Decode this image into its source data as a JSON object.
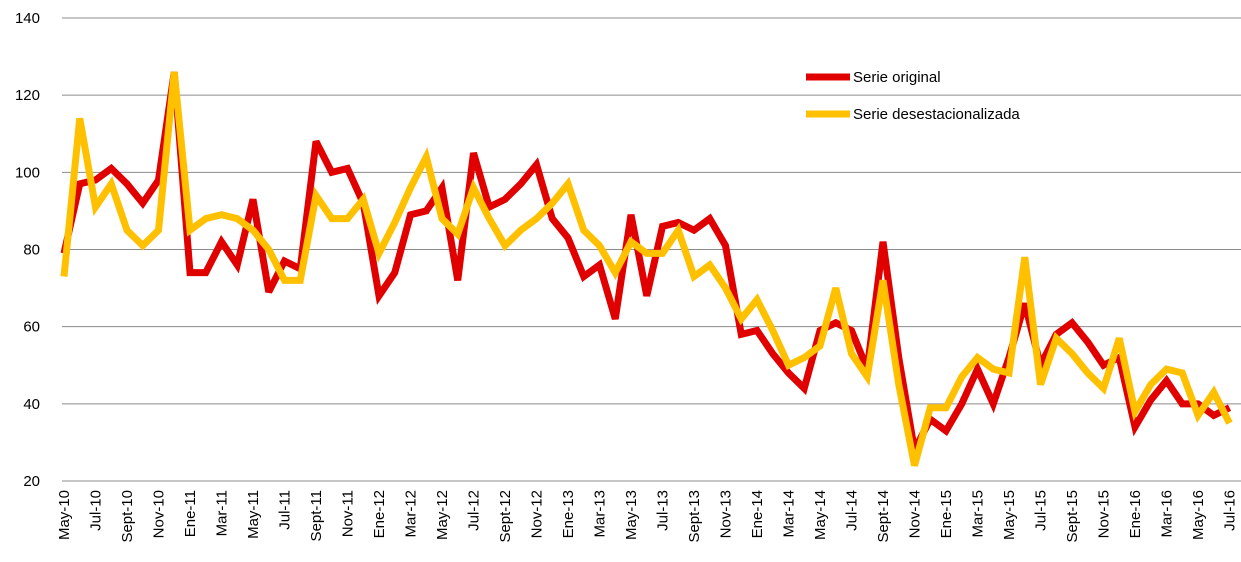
{
  "chart_data": {
    "type": "line",
    "categories": [
      "May-10",
      null,
      "Jul-10",
      null,
      "Sept-10",
      null,
      "Nov-10",
      null,
      "Ene-11",
      null,
      "Mar-11",
      null,
      "May-11",
      null,
      "Jul-11",
      null,
      "Sept-11",
      null,
      "Nov-11",
      null,
      "Ene-12",
      null,
      "Mar-12",
      null,
      "May-12",
      null,
      "Jul-12",
      null,
      "Sept-12",
      null,
      "Nov-12",
      null,
      "Ene-13",
      null,
      "Mar-13",
      null,
      "May-13",
      null,
      "Jul-13",
      null,
      "Sept-13",
      null,
      "Nov-13",
      null,
      "Ene-14",
      null,
      "Mar-14",
      null,
      "May-14",
      null,
      "Jul-14",
      null,
      "Sept-14",
      null,
      "Nov-14",
      null,
      "Ene-15",
      null,
      "Mar-15",
      null,
      "May-15",
      null,
      "Jul-15",
      null,
      "Sept-15",
      null,
      "Nov-15",
      null,
      "Ene-16",
      null,
      "Mar-16",
      null,
      "May-16",
      null,
      "Jul-16"
    ],
    "series": [
      {
        "name": "Serie original",
        "color": "#e00000",
        "values": [
          79,
          97,
          98,
          101,
          97,
          92,
          98,
          126,
          74,
          74,
          82,
          76,
          93,
          69,
          77,
          75,
          108,
          100,
          101,
          92,
          68,
          74,
          89,
          90,
          96,
          72,
          105,
          91,
          93,
          97,
          102,
          88,
          83,
          73,
          76,
          62,
          89,
          68,
          86,
          87,
          85,
          88,
          81,
          58,
          59,
          53,
          48,
          44,
          59,
          61,
          59,
          49,
          82,
          52,
          28,
          36,
          33,
          40,
          49,
          40,
          52,
          66,
          50,
          58,
          61,
          56,
          50,
          52,
          34,
          41,
          46,
          40,
          40,
          37,
          39
        ]
      },
      {
        "name": "Serie desestacionalizada",
        "color": "#ffc000",
        "values": [
          73,
          114,
          91,
          97,
          85,
          81,
          85,
          126,
          85,
          88,
          89,
          88,
          85,
          80,
          72,
          72,
          94,
          88,
          88,
          93,
          79,
          87,
          96,
          104,
          88,
          84,
          96,
          88,
          81,
          85,
          88,
          92,
          97,
          85,
          81,
          74,
          82,
          79,
          79,
          85,
          73,
          76,
          70,
          62,
          67,
          59,
          50,
          52,
          55,
          70,
          53,
          47,
          72,
          45,
          24,
          39,
          39,
          47,
          52,
          49,
          48,
          78,
          45,
          57,
          53,
          48,
          44,
          57,
          38,
          45,
          49,
          48,
          37,
          43,
          35
        ]
      }
    ],
    "ylim": [
      20,
      140
    ],
    "yticks": [
      20,
      40,
      60,
      80,
      100,
      120,
      140
    ],
    "grid": true
  }
}
